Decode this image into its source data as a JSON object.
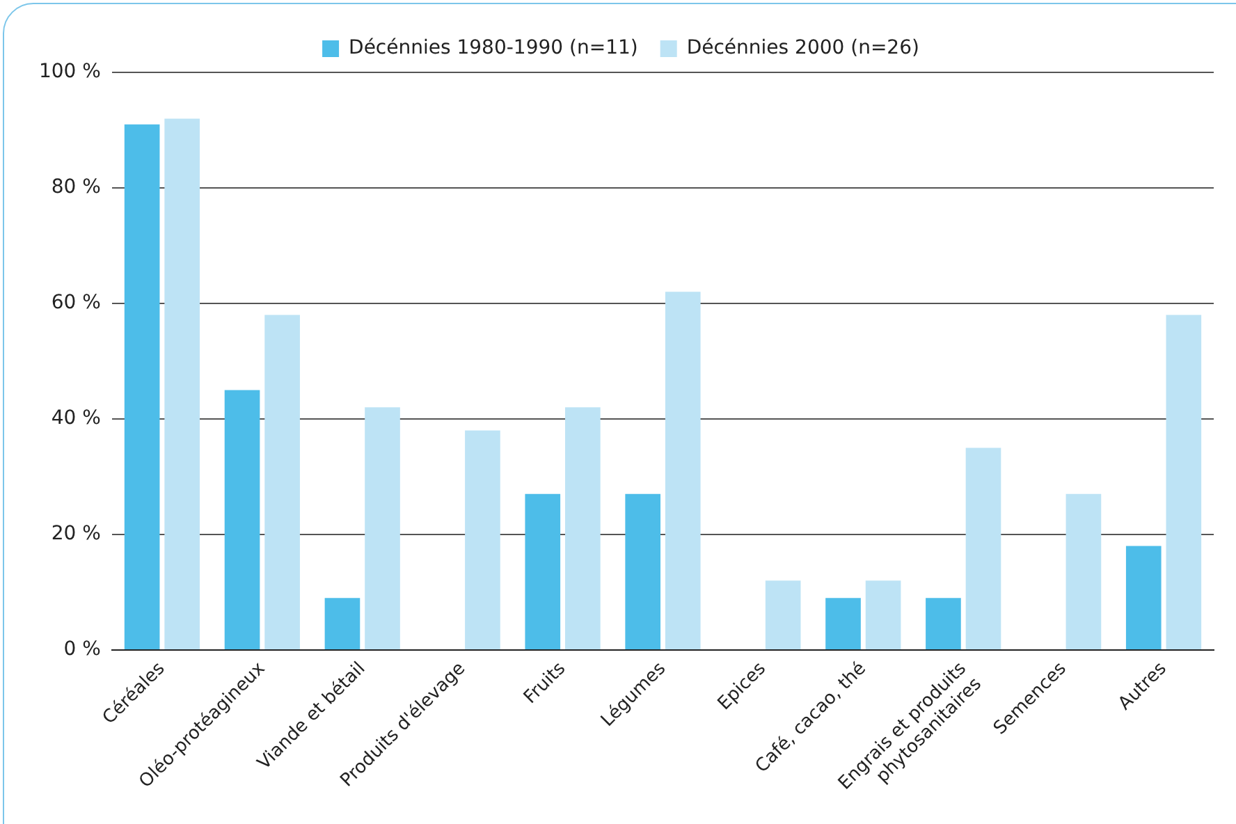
{
  "chart_data": {
    "type": "bar",
    "categories": [
      "Céréales",
      "Oléo-protéagineux",
      "Viande et bétail",
      "Produits d'élevage",
      "Fruits",
      "Légumes",
      "Epices",
      "Café, cacao, thé",
      "Engrais et produits phytosanitaires",
      "Semences",
      "Autres"
    ],
    "series": [
      {
        "name": "Décénnies 1980-1990 (n=11)",
        "color": "#4dbde9",
        "values": [
          91,
          45,
          9,
          0,
          27,
          27,
          0,
          9,
          9,
          0,
          18
        ]
      },
      {
        "name": "Décénnies 2000 (n=26)",
        "color": "#bde3f5",
        "values": [
          92,
          58,
          42,
          38,
          42,
          62,
          12,
          12,
          35,
          27,
          58
        ]
      }
    ],
    "ylim": [
      0,
      100
    ],
    "yticks": [
      {
        "value": 0,
        "label": "0 %"
      },
      {
        "value": 20,
        "label": "20 %"
      },
      {
        "value": 40,
        "label": "40 %"
      },
      {
        "value": 60,
        "label": "60 %"
      },
      {
        "value": 80,
        "label": "80 %"
      },
      {
        "value": 100,
        "label": "100 %"
      }
    ],
    "grid": "y",
    "legend": "top"
  }
}
